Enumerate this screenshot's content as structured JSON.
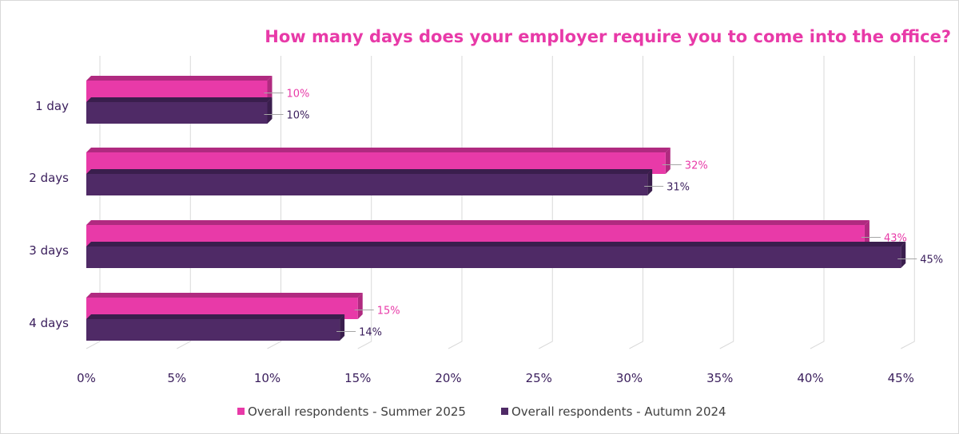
{
  "chart_data": {
    "type": "bar",
    "orientation": "horizontal",
    "style": "3d-clustered",
    "title": "How many days does your employer require you to come into the office?",
    "categories": [
      "1 day",
      "2 days",
      "3 days",
      "4 days"
    ],
    "series": [
      {
        "name": "Overall respondents - Summer 2025",
        "color": "#e83aa8",
        "top_color": "#b02a80",
        "label_color": "#e83aa8",
        "values": [
          10,
          32,
          43,
          15
        ],
        "labels": [
          "10%",
          "32%",
          "43%",
          "15%"
        ]
      },
      {
        "name": "Overall respondents - Autumn 2024",
        "color": "#4f2a66",
        "top_color": "#3a1e4d",
        "label_color": "#3a1e5c",
        "values": [
          10,
          31,
          45,
          14
        ],
        "labels": [
          "10%",
          "31%",
          "45%",
          "14%"
        ]
      }
    ],
    "xlim": [
      0,
      45
    ],
    "xticks": [
      "0%",
      "5%",
      "10%",
      "15%",
      "20%",
      "25%",
      "30%",
      "35%",
      "40%",
      "45%"
    ],
    "grid": true,
    "legend_position": "bottom",
    "title_color": "#e83aa8"
  }
}
